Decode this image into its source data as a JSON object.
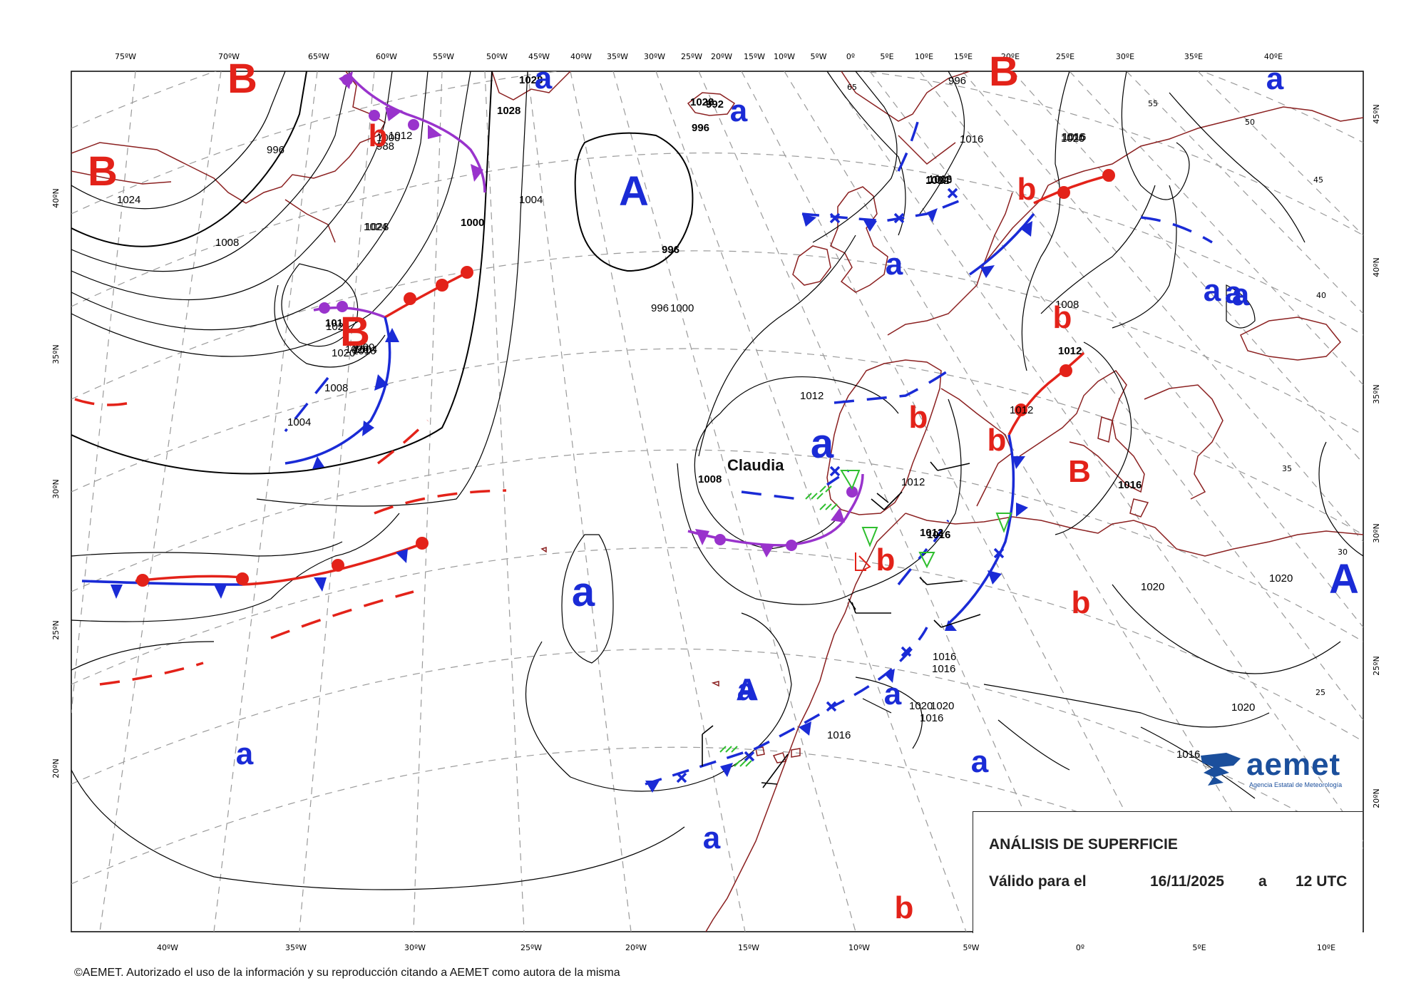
{
  "top_lon_labels": [
    "75ºW",
    "70ºW",
    "65ºW",
    "60ºW",
    "55ºW",
    "50ºW",
    "45ºW",
    "40ºW",
    "35ºW",
    "30ºW",
    "25ºW",
    "20ºW",
    "15ºW",
    "10ºW",
    "5ºW",
    "0º",
    "5ºE",
    "10ºE",
    "15ºE",
    "20ºE",
    "25ºE",
    "30ºE",
    "35ºE",
    "40ºE"
  ],
  "bottom_lon_labels": [
    "40ºW",
    "35ºW",
    "30ºW",
    "25ºW",
    "20ºW",
    "15ºW",
    "10ºW",
    "5ºW",
    "0º",
    "5ºE",
    "10ºE"
  ],
  "left_lat_labels": [
    "40ºN",
    "35ºN",
    "30ºN",
    "25ºN",
    "20ºN"
  ],
  "right_lat_labels": [
    "45ºN",
    "40ºN",
    "35ºN",
    "30ºN",
    "25ºN",
    "20ºN"
  ],
  "graticule_labels": [
    "65",
    "55",
    "50",
    "45",
    "40",
    "35",
    "30",
    "25"
  ],
  "isobar_labels": [
    "1028",
    "996",
    "1028",
    "1028",
    "992",
    "996",
    "996",
    "1000",
    "988",
    "1012",
    "1024",
    "1000",
    "1004",
    "1008",
    "1028",
    "1024",
    "996",
    "996",
    "1000",
    "1004",
    "1016",
    "1008",
    "1012",
    "1016",
    "1016",
    "1016",
    "1020",
    "1016",
    "1024",
    "1020",
    "1020",
    "1000",
    "1004",
    "1016",
    "1008",
    "1004",
    "1012",
    "1008",
    "1012",
    "1012",
    "1012",
    "1016",
    "1008",
    "1012",
    "1016",
    "1020",
    "1016",
    "1016",
    "1020",
    "1020",
    "1016",
    "1016",
    "1020",
    "1020",
    "1016"
  ],
  "pressure_systems": [
    {
      "symbol": "B",
      "color": "#e32219"
    },
    {
      "symbol": "B",
      "color": "#e32219"
    },
    {
      "symbol": "b",
      "color": "#e32219"
    },
    {
      "symbol": "a",
      "color": "#1a2bd6"
    },
    {
      "symbol": "a",
      "color": "#1a2bd6"
    },
    {
      "symbol": "A",
      "color": "#1a2bd6"
    },
    {
      "symbol": "B",
      "color": "#e32219"
    },
    {
      "symbol": "a",
      "color": "#1a2bd6"
    },
    {
      "symbol": "b",
      "color": "#e32219"
    },
    {
      "symbol": "a",
      "color": "#1a2bd6"
    },
    {
      "symbol": "B",
      "color": "#e32219"
    },
    {
      "symbol": "a",
      "color": "#1a2bd6"
    },
    {
      "symbol": "b",
      "color": "#e32219"
    },
    {
      "symbol": "b",
      "color": "#e32219"
    },
    {
      "symbol": "b",
      "color": "#e32219"
    },
    {
      "symbol": "a",
      "color": "#1a2bd6"
    },
    {
      "symbol": "a",
      "color": "#1a2bd6"
    },
    {
      "symbol": "B",
      "color": "#e32219"
    },
    {
      "symbol": "b",
      "color": "#e32219"
    },
    {
      "symbol": "b",
      "color": "#e32219"
    },
    {
      "symbol": "a",
      "color": "#1a2bd6"
    },
    {
      "symbol": "a",
      "color": "#1a2bd6"
    },
    {
      "symbol": "A",
      "color": "#1a2bd6"
    },
    {
      "symbol": "A",
      "color": "#1a2bd6"
    },
    {
      "symbol": "a",
      "color": "#1a2bd6"
    },
    {
      "symbol": "a",
      "color": "#1a2bd6"
    },
    {
      "symbol": "a",
      "color": "#1a2bd6"
    },
    {
      "symbol": "a",
      "color": "#1a2bd6"
    },
    {
      "symbol": "b",
      "color": "#e32219"
    },
    {
      "symbol": "a",
      "color": "#1a2bd6"
    }
  ],
  "storm_name": "Claudia",
  "info_box": {
    "title": "ANÁLISIS DE SUPERFICIE",
    "valid_label": "Válido para el",
    "date": "16/11/2025",
    "a_word": "a",
    "time": "12 UTC"
  },
  "logo": {
    "name": "aemet",
    "subtitle": "Agencia Estatal de Meteorología",
    "color": "#1b4f9c"
  },
  "copyright": "©AEMET. Autorizado el uso de la información y su reproducción citando a AEMET como autora de la misma",
  "colors": {
    "warm_front": "#e32219",
    "cold_front": "#1a2bd6",
    "occluded_front": "#9933cc",
    "coast": "#8b2020",
    "graticule": "#9a9a9a",
    "isobar": "#000000",
    "precip": "#2fbf2f"
  }
}
